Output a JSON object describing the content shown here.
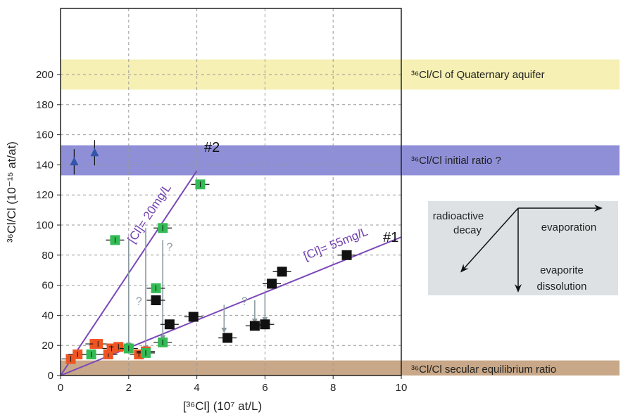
{
  "chart_data": {
    "type": "scatter",
    "xlabel": "[³⁶Cl] (10⁷ at/L)",
    "ylabel": "³⁶Cl/Cl (10⁻¹⁵ at/at)",
    "xlim": [
      0,
      10
    ],
    "ylim": [
      0,
      215
    ],
    "xticks": [
      "0",
      "2",
      "4",
      "6",
      "8",
      "10"
    ],
    "yticks": [
      "0",
      "20",
      "40",
      "60",
      "80",
      "100",
      "120",
      "140",
      "160",
      "180",
      "200"
    ],
    "grid": true,
    "bands": [
      {
        "label": "³⁶Cl/Cl of Quaternary aquifer",
        "ymin": 190,
        "ymax": 210,
        "color": "#f6f0b4"
      },
      {
        "label": "³⁶Cl/Cl initial ratio ?",
        "ymin": 133,
        "ymax": 153,
        "color": "#8f8fd8"
      },
      {
        "label": "³⁶Cl/Cl secular equilibrium ratio",
        "ymin": 0,
        "ymax": 10,
        "color": "#c8a888"
      }
    ],
    "lines": [
      {
        "label": "[Cl]= 20mg/L",
        "id": "#2",
        "x": [
          0,
          4
        ],
        "y": [
          0,
          136
        ],
        "color": "#7a48b8"
      },
      {
        "label": "[Cl]= 55mg/L",
        "id": "#1",
        "x": [
          0,
          10
        ],
        "y": [
          0,
          92
        ],
        "color": "#7a48b8"
      }
    ],
    "series": [
      {
        "marker": "square",
        "color": "#ee5522",
        "points": [
          [
            0.3,
            11
          ],
          [
            0.5,
            14
          ],
          [
            1.0,
            21
          ],
          [
            1.1,
            21
          ],
          [
            1.4,
            14
          ],
          [
            1.5,
            18
          ],
          [
            1.7,
            19
          ],
          [
            2.3,
            14
          ],
          [
            2.5,
            16
          ]
        ]
      },
      {
        "marker": "square",
        "color": "#33bb55",
        "points": [
          [
            0.9,
            14
          ],
          [
            1.6,
            90
          ],
          [
            2.0,
            18
          ],
          [
            2.5,
            15
          ],
          [
            2.8,
            58
          ],
          [
            3.0,
            98
          ],
          [
            3.0,
            22
          ],
          [
            4.1,
            127
          ]
        ]
      },
      {
        "marker": "square",
        "color": "#111111",
        "points": [
          [
            2.8,
            50
          ],
          [
            3.2,
            34
          ],
          [
            3.9,
            39
          ],
          [
            4.9,
            25
          ],
          [
            5.7,
            33
          ],
          [
            6.0,
            34
          ],
          [
            6.2,
            61
          ],
          [
            6.5,
            69
          ],
          [
            8.4,
            80
          ]
        ]
      },
      {
        "marker": "triangle",
        "color": "#3355aa",
        "points": [
          [
            0.4,
            142
          ],
          [
            1.0,
            148
          ]
        ]
      }
    ],
    "arrows": [
      {
        "x": 2.0,
        "y_from": 90,
        "y_to": 20
      },
      {
        "x": 2.5,
        "y_from": 98,
        "y_to": 18
      },
      {
        "x": 3.0,
        "y_from": 90,
        "y_to": 25
      },
      {
        "x": 4.8,
        "y_from": 47,
        "y_to": 30
      },
      {
        "x": 5.7,
        "y_from": 50,
        "y_to": 36
      },
      {
        "x": 6.0,
        "y_from": 55,
        "y_to": 37
      }
    ],
    "question_marks": [
      {
        "text": "?",
        "x": 3.2,
        "y": 83
      },
      {
        "text": "?",
        "x": 2.3,
        "y": 47
      },
      {
        "text": "?",
        "x": 5.4,
        "y": 47
      }
    ],
    "process_diagram": {
      "labels": [
        "radioactive decay",
        "evaporation",
        "evaporite dissolution"
      ]
    }
  }
}
